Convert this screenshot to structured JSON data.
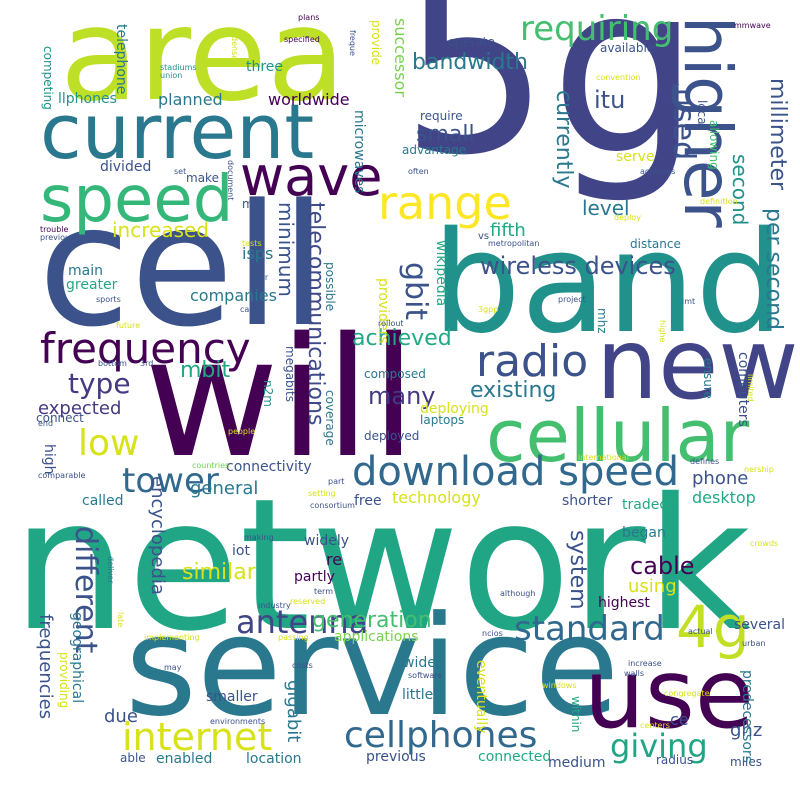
{
  "palette": {
    "dark_purple": "#440154",
    "indigo": "#414487",
    "blue": "#3b528b",
    "teal_blue": "#2a788e",
    "teal": "#21918c",
    "green_teal": "#22a884",
    "green": "#44bf70",
    "lime_green": "#7ad151",
    "yellow_green": "#bddf26",
    "yellow": "#fde725"
  },
  "words": [
    {
      "text": "5g",
      "color": "#414487"
    },
    {
      "text": "network",
      "color": "#21a685"
    },
    {
      "text": "cell",
      "color": "#3b528b"
    },
    {
      "text": "will",
      "color": "#440154"
    },
    {
      "text": "area",
      "color": "#bddf26"
    },
    {
      "text": "band",
      "color": "#21918c"
    },
    {
      "text": "service",
      "color": "#2a788e"
    },
    {
      "text": "current",
      "color": "#2a788e"
    },
    {
      "text": "speed",
      "color": "#35b779"
    },
    {
      "text": "new",
      "color": "#414487"
    },
    {
      "text": "higher",
      "color": "#3b528b"
    },
    {
      "text": "cellular",
      "color": "#44bf70"
    },
    {
      "text": "use",
      "color": "#440154"
    },
    {
      "text": "wave",
      "color": "#440154"
    },
    {
      "text": "range",
      "color": "#fde725"
    },
    {
      "text": "download speed",
      "color": "#31688e"
    },
    {
      "text": "frequency",
      "color": "#440154"
    },
    {
      "text": "4g",
      "color": "#c2df23"
    },
    {
      "text": "internet",
      "color": "#d8e219"
    },
    {
      "text": "cellphones",
      "color": "#31688e"
    },
    {
      "text": "radio",
      "color": "#3b528b"
    },
    {
      "text": "requiring",
      "color": "#44bf70"
    },
    {
      "text": "wireless devices",
      "color": "#3b528b"
    },
    {
      "text": "antenna",
      "color": "#414487"
    },
    {
      "text": "standard",
      "color": "#31688e"
    },
    {
      "text": "tower",
      "color": "#31688e"
    },
    {
      "text": "low",
      "color": "#d8e219"
    },
    {
      "text": "type",
      "color": "#443983"
    },
    {
      "text": "different",
      "color": "#3b528b"
    },
    {
      "text": "telecommunications",
      "color": "#3e4a89"
    },
    {
      "text": "giving",
      "color": "#21a685"
    },
    {
      "text": "generation",
      "color": "#44bf70"
    },
    {
      "text": "gbit",
      "color": "#3b528b"
    },
    {
      "text": "used",
      "color": "#3b528b"
    },
    {
      "text": "per second",
      "color": "#2a788e"
    },
    {
      "text": "millimeter",
      "color": "#3b528b"
    },
    {
      "text": "second",
      "color": "#21918c"
    },
    {
      "text": "currently",
      "color": "#2a788e"
    },
    {
      "text": "bandwidth",
      "color": "#2a788e"
    },
    {
      "text": "small",
      "color": "#3b528b"
    },
    {
      "text": "itu",
      "color": "#3b528b"
    },
    {
      "text": "increased",
      "color": "#d8e219"
    },
    {
      "text": "minimum",
      "color": "#3b528b"
    },
    {
      "text": "achieved",
      "color": "#22a884"
    },
    {
      "text": "many",
      "color": "#443983"
    },
    {
      "text": "existing",
      "color": "#2a788e"
    },
    {
      "text": "level",
      "color": "#2a788e"
    },
    {
      "text": "fifth",
      "color": "#22a884"
    },
    {
      "text": "companies",
      "color": "#2a788e"
    },
    {
      "text": "mbit",
      "color": "#22a884"
    },
    {
      "text": "expected",
      "color": "#443983"
    },
    {
      "text": "general",
      "color": "#2a788e"
    },
    {
      "text": "worldwide",
      "color": "#440154"
    },
    {
      "text": "planned",
      "color": "#2a788e"
    },
    {
      "text": "frequencies",
      "color": "#3b528b"
    },
    {
      "text": "encyclopedia",
      "color": "#3b528b"
    },
    {
      "text": "similar",
      "color": "#d8e219"
    },
    {
      "text": "connectivity",
      "color": "#3b528b"
    },
    {
      "text": "technology",
      "color": "#d8e219"
    },
    {
      "text": "system",
      "color": "#3b528b"
    },
    {
      "text": "cable",
      "color": "#440154"
    },
    {
      "text": "phone",
      "color": "#3b528b"
    },
    {
      "text": "desktop",
      "color": "#22a884"
    },
    {
      "text": "gigabit",
      "color": "#2a788e"
    },
    {
      "text": "ghz",
      "color": "#3b528b"
    },
    {
      "text": "due",
      "color": "#3b528b"
    },
    {
      "text": "using",
      "color": "#d8e219"
    },
    {
      "text": "highest",
      "color": "#440154"
    },
    {
      "text": "ce",
      "color": "#3b528b"
    },
    {
      "text": "smaller",
      "color": "#3b528b"
    },
    {
      "text": "little",
      "color": "#2a788e"
    },
    {
      "text": "previous",
      "color": "#3b528b"
    },
    {
      "text": "connected",
      "color": "#22a884"
    },
    {
      "text": "medium",
      "color": "#3b528b"
    },
    {
      "text": "radius",
      "color": "#3b528b"
    },
    {
      "text": "miles",
      "color": "#3b528b"
    },
    {
      "text": "location",
      "color": "#2a788e"
    },
    {
      "text": "enabled",
      "color": "#2a788e"
    },
    {
      "text": "able",
      "color": "#3b528b"
    },
    {
      "text": "applications",
      "color": "#7ad151"
    },
    {
      "text": "eventually",
      "color": "#d8e219"
    },
    {
      "text": "predecessors",
      "color": "#2a788e"
    },
    {
      "text": "several",
      "color": "#3b528b"
    },
    {
      "text": "wide",
      "color": "#2a788e"
    },
    {
      "text": "partly",
      "color": "#440154"
    },
    {
      "text": "widely",
      "color": "#3b528b"
    },
    {
      "text": "re",
      "color": "#440154"
    },
    {
      "text": "iot",
      "color": "#3b528b"
    },
    {
      "text": "began",
      "color": "#2a788e"
    },
    {
      "text": "shorter",
      "color": "#3b528b"
    },
    {
      "text": "tradeoff",
      "color": "#22a884"
    },
    {
      "text": "free",
      "color": "#3b528b"
    },
    {
      "text": "called",
      "color": "#2a788e"
    },
    {
      "text": "high",
      "color": "#3b528b"
    },
    {
      "text": "laptops",
      "color": "#2a788e"
    },
    {
      "text": "deploying",
      "color": "#d8e219"
    },
    {
      "text": "composed",
      "color": "#2a788e"
    },
    {
      "text": "deployed",
      "color": "#3b528b"
    },
    {
      "text": "coverage",
      "color": "#2a788e"
    },
    {
      "text": "megabits",
      "color": "#3b528b"
    },
    {
      "text": "possible",
      "color": "#2a788e"
    },
    {
      "text": "n2m",
      "color": "#21918c"
    },
    {
      "text": "greater",
      "color": "#22a884"
    },
    {
      "text": "main",
      "color": "#2a788e"
    },
    {
      "text": "isps",
      "color": "#2a788e"
    },
    {
      "text": "providers",
      "color": "#d8e219"
    },
    {
      "text": "wikipedia",
      "color": "#22a884"
    },
    {
      "text": "mhz",
      "color": "#2a788e"
    },
    {
      "text": "computers",
      "color": "#3b528b"
    },
    {
      "text": "ensure",
      "color": "#2a788e"
    },
    {
      "text": "connect",
      "color": "#3b528b"
    },
    {
      "text": "distance",
      "color": "#2a788e"
    },
    {
      "text": "microwaves",
      "color": "#2a788e"
    },
    {
      "text": "successor",
      "color": "#7ad151"
    },
    {
      "text": "provide",
      "color": "#d8e219"
    },
    {
      "text": "telephone",
      "color": "#2a788e"
    },
    {
      "text": "three",
      "color": "#21918c"
    },
    {
      "text": "operate",
      "color": "#3b528b"
    },
    {
      "text": "available",
      "color": "#3b528b"
    },
    {
      "text": "require",
      "color": "#3b528b"
    },
    {
      "text": "advantage",
      "color": "#2a788e"
    },
    {
      "text": "serve",
      "color": "#d8e219"
    },
    {
      "text": "local",
      "color": "#3b528b"
    },
    {
      "text": "allowing",
      "color": "#44bf70"
    },
    {
      "text": "competing",
      "color": "#21918c"
    },
    {
      "text": "llphones",
      "color": "#21918c"
    },
    {
      "text": "divided",
      "color": "#3b528b"
    },
    {
      "text": "make",
      "color": "#3b528b"
    },
    {
      "text": "mid",
      "color": "#3b528b"
    },
    {
      "text": "vs",
      "color": "#3b528b"
    },
    {
      "text": "metropolitan",
      "color": "#3b528b"
    },
    {
      "text": "stadiums",
      "color": "#21918c"
    },
    {
      "text": "union",
      "color": "#21918c"
    },
    {
      "text": "specified",
      "color": "#440154"
    },
    {
      "text": "plans",
      "color": "#440154"
    },
    {
      "text": "convention",
      "color": "#d8e219"
    },
    {
      "text": "often",
      "color": "#3b528b"
    },
    {
      "text": "achieves",
      "color": "#3b528b"
    },
    {
      "text": "mmwave",
      "color": "#440154"
    },
    {
      "text": "freque",
      "color": "#3b528b"
    },
    {
      "text": "dense",
      "color": "#d8e219"
    },
    {
      "text": "definition",
      "color": "#d8e219"
    },
    {
      "text": "deploy",
      "color": "#d8e219"
    },
    {
      "text": "set",
      "color": "#3b528b"
    },
    {
      "text": "document",
      "color": "#3b528b"
    },
    {
      "text": "trouble",
      "color": "#440154"
    },
    {
      "text": "previously",
      "color": "#3b528b"
    },
    {
      "text": "sports",
      "color": "#3b528b"
    },
    {
      "text": "came",
      "color": "#3b528b"
    },
    {
      "text": "tests",
      "color": "#d8e219"
    },
    {
      "text": "near",
      "color": "#3b528b"
    },
    {
      "text": "rollout",
      "color": "#3b528b"
    },
    {
      "text": "3gpp",
      "color": "#d8e219"
    },
    {
      "text": "project",
      "color": "#3b528b"
    },
    {
      "text": "imt",
      "color": "#3b528b"
    },
    {
      "text": "highe",
      "color": "#d8e219"
    },
    {
      "text": "limited",
      "color": "#d8e219"
    },
    {
      "text": "future",
      "color": "#d8e219"
    },
    {
      "text": "bottom",
      "color": "#3b528b"
    },
    {
      "text": "3rd",
      "color": "#3b528b"
    },
    {
      "text": "end",
      "color": "#3b528b"
    },
    {
      "text": "people",
      "color": "#d8e219"
    },
    {
      "text": "countries",
      "color": "#7ad151"
    },
    {
      "text": "international",
      "color": "#d8e219"
    },
    {
      "text": "defines",
      "color": "#3b528b"
    },
    {
      "text": "nership",
      "color": "#d8e219"
    },
    {
      "text": "comparable",
      "color": "#3b528b"
    },
    {
      "text": "setting",
      "color": "#d8e219"
    },
    {
      "text": "part",
      "color": "#3b528b"
    },
    {
      "text": "consortium",
      "color": "#3b528b"
    },
    {
      "text": "making",
      "color": "#3b528b"
    },
    {
      "text": "term",
      "color": "#3b528b"
    },
    {
      "text": "crowds",
      "color": "#d8e219"
    },
    {
      "text": "deliver",
      "color": "#2a788e"
    },
    {
      "text": "late",
      "color": "#d8e219"
    },
    {
      "text": "reserved",
      "color": "#d8e219"
    },
    {
      "text": "industry",
      "color": "#3b528b"
    },
    {
      "text": "ncios",
      "color": "#3b528b"
    },
    {
      "text": "actual",
      "color": "#3b528b"
    },
    {
      "text": "urban",
      "color": "#3b528b"
    },
    {
      "text": "implementing",
      "color": "#d8e219"
    },
    {
      "text": "passing",
      "color": "#d8e219"
    },
    {
      "text": "may",
      "color": "#3b528b"
    },
    {
      "text": "costs",
      "color": "#3b528b"
    },
    {
      "text": "software",
      "color": "#3b528b"
    },
    {
      "text": "although",
      "color": "#3b528b"
    },
    {
      "text": "increase",
      "color": "#3b528b"
    },
    {
      "text": "walls",
      "color": "#3b528b"
    },
    {
      "text": "congregate",
      "color": "#d8e219"
    },
    {
      "text": "windows",
      "color": "#d8e219"
    },
    {
      "text": "centers",
      "color": "#d8e219"
    },
    {
      "text": "environments",
      "color": "#3b528b"
    },
    {
      "text": "providing",
      "color": "#d8e219"
    },
    {
      "text": "geographical",
      "color": "#2a788e"
    },
    {
      "text": "within",
      "color": "#22a884"
    }
  ]
}
